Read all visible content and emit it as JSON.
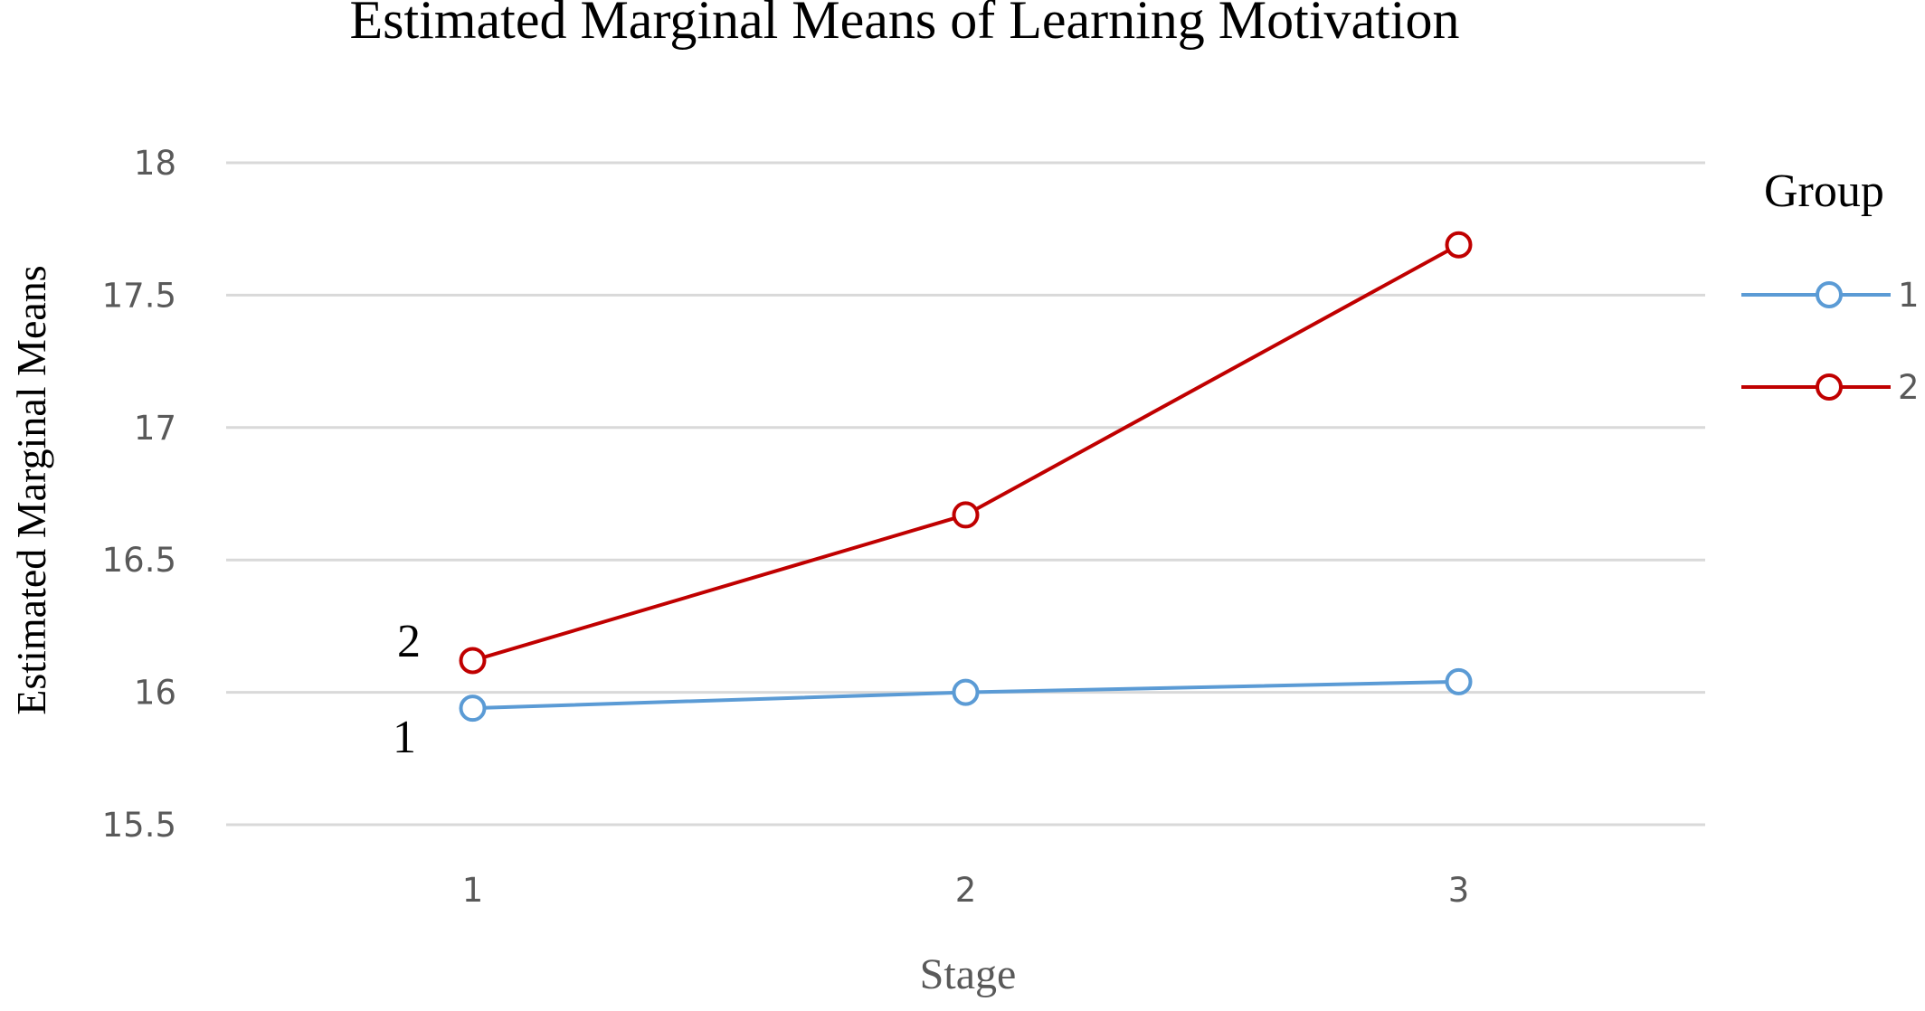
{
  "chart_data": {
    "type": "line",
    "title": "Estimated Marginal Means of Learning Motivation",
    "xlabel": "Stage",
    "ylabel": "Estimated Marginal Means",
    "categories": [
      "1",
      "2",
      "3"
    ],
    "ylim": [
      15.5,
      18
    ],
    "yticks": [
      "15.5",
      "16",
      "16.5",
      "17",
      "17.5",
      "18"
    ],
    "grid": true,
    "legend": {
      "title": "Group",
      "placement": "right"
    },
    "series": [
      {
        "name": "1",
        "values": [
          15.94,
          16.0,
          16.04
        ],
        "color": "#5b9bd5"
      },
      {
        "name": "2",
        "values": [
          16.12,
          16.67,
          17.69
        ],
        "color": "#c00000"
      }
    ],
    "annotations": [
      "2",
      "1"
    ]
  }
}
